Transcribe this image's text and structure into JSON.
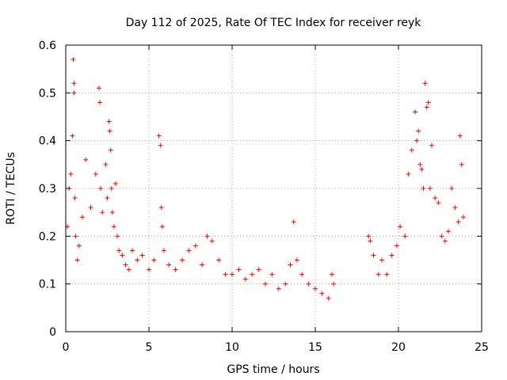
{
  "chart_data": {
    "type": "scatter",
    "title": "Day 112 of 2025, Rate Of TEC Index for receiver reyk",
    "xlabel": "GPS time / hours",
    "ylabel": "ROTI / TECUs",
    "xlim": [
      0,
      25
    ],
    "ylim": [
      0,
      0.6
    ],
    "x_ticks": [
      "0",
      "5",
      "10",
      "15",
      "20",
      "25"
    ],
    "y_ticks": [
      "0",
      "0.1",
      "0.2",
      "0.3",
      "0.4",
      "0.5",
      "0.6"
    ],
    "grid": true,
    "marker": "+",
    "color": "#ff0000",
    "series": [
      {
        "x": [
          0.1,
          0.2,
          0.3,
          0.4,
          0.45,
          0.5,
          0.5,
          0.55,
          0.6,
          0.7,
          0.8,
          1.0,
          1.2,
          1.5,
          1.8,
          2.0,
          2.05,
          2.1,
          2.2,
          2.4,
          2.5,
          2.6,
          2.65,
          2.7,
          2.75,
          2.8,
          2.9,
          3.0,
          3.1,
          3.2,
          3.4,
          3.6,
          3.8,
          4.0,
          4.3,
          4.6,
          5.0,
          5.3,
          5.6,
          5.7,
          5.75,
          5.8,
          5.9,
          6.2,
          6.6,
          7.0,
          7.4,
          7.8,
          8.2,
          8.5,
          8.8,
          9.2,
          9.6,
          10.0,
          10.4,
          10.8,
          11.2,
          11.6,
          12.0,
          12.4,
          12.8,
          13.2,
          13.5,
          13.7,
          13.9,
          14.2,
          14.6,
          15.0,
          15.4,
          15.8,
          16.0,
          16.1,
          18.2,
          18.3,
          18.5,
          18.8,
          19.0,
          19.3,
          19.6,
          19.9,
          20.1,
          20.4,
          20.6,
          20.8,
          21.0,
          21.1,
          21.2,
          21.3,
          21.4,
          21.5,
          21.6,
          21.7,
          21.8,
          21.9,
          22.0,
          22.2,
          22.4,
          22.6,
          22.8,
          23.0,
          23.2,
          23.4,
          23.6,
          23.7,
          23.8,
          23.9
        ],
        "y": [
          0.22,
          0.3,
          0.33,
          0.41,
          0.57,
          0.52,
          0.5,
          0.28,
          0.2,
          0.15,
          0.18,
          0.24,
          0.36,
          0.26,
          0.33,
          0.51,
          0.48,
          0.3,
          0.25,
          0.35,
          0.28,
          0.44,
          0.42,
          0.38,
          0.3,
          0.25,
          0.22,
          0.31,
          0.2,
          0.17,
          0.16,
          0.14,
          0.13,
          0.17,
          0.15,
          0.16,
          0.13,
          0.15,
          0.41,
          0.39,
          0.26,
          0.22,
          0.17,
          0.14,
          0.13,
          0.15,
          0.17,
          0.18,
          0.14,
          0.2,
          0.19,
          0.15,
          0.12,
          0.12,
          0.13,
          0.11,
          0.12,
          0.13,
          0.1,
          0.12,
          0.09,
          0.1,
          0.14,
          0.23,
          0.15,
          0.12,
          0.1,
          0.09,
          0.08,
          0.07,
          0.12,
          0.1,
          0.2,
          0.19,
          0.16,
          0.12,
          0.15,
          0.12,
          0.16,
          0.18,
          0.22,
          0.2,
          0.33,
          0.38,
          0.46,
          0.4,
          0.42,
          0.35,
          0.34,
          0.3,
          0.52,
          0.47,
          0.48,
          0.3,
          0.39,
          0.28,
          0.27,
          0.2,
          0.19,
          0.21,
          0.3,
          0.26,
          0.23,
          0.41,
          0.35,
          0.24
        ]
      }
    ]
  }
}
